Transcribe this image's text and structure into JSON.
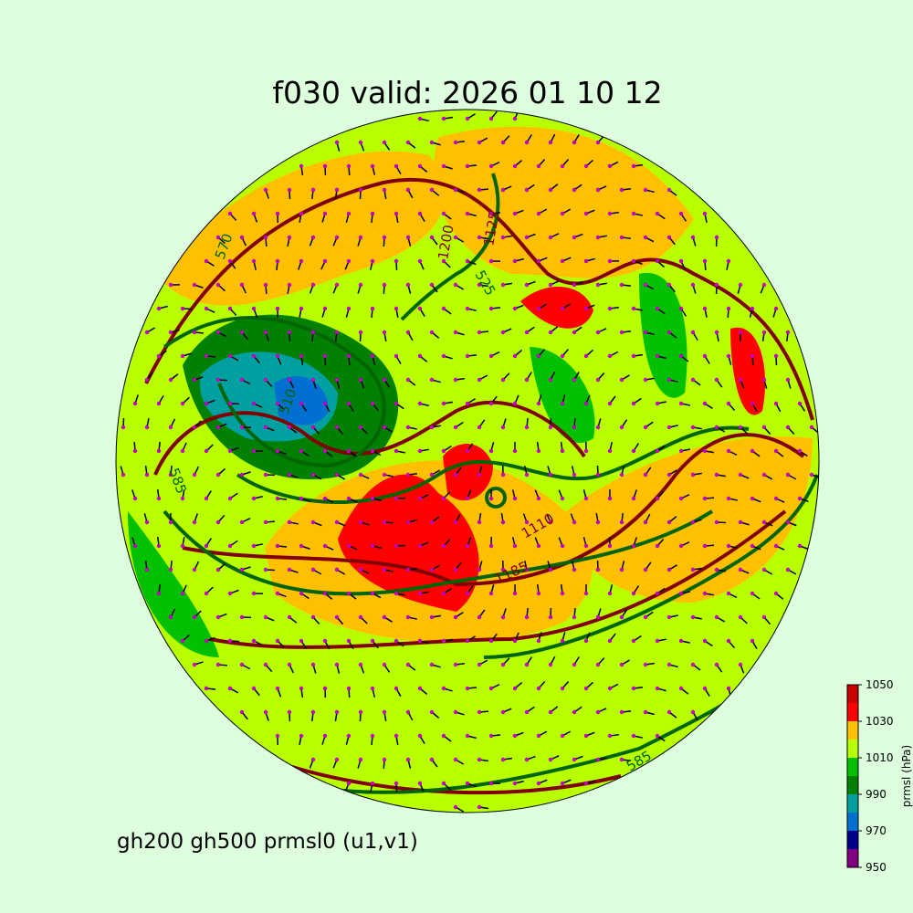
{
  "map": {
    "title": "f030 valid:   2026 01 10 12",
    "footer": "gh200 gh500 prmsl0 (u1,v1)",
    "contour_labels": [
      "510",
      "585",
      "525",
      "1125",
      "1200",
      "1185",
      "1110",
      "570",
      "585"
    ],
    "colorbar": {
      "label": "prmsl (hPa)",
      "range": [
        950,
        1050
      ],
      "ticks": [
        950,
        970,
        990,
        1010,
        1030,
        1050
      ],
      "colors": [
        "#800080",
        "#00008b",
        "#0070d0",
        "#00a0a0",
        "#008000",
        "#00c000",
        "#b8ff00",
        "#ffc000",
        "#ff0000",
        "#c80000"
      ]
    }
  }
}
